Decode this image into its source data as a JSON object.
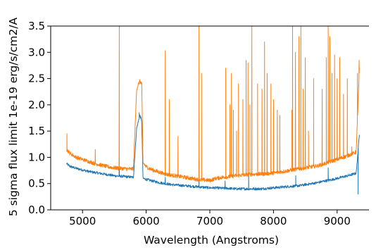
{
  "chart_data": {
    "type": "line",
    "xlabel": "Wavelength (Angstroms)",
    "ylabel": "5 sigma flux limit 1e-19 erg/s/cm2/A",
    "xlim": [
      4500,
      9500
    ],
    "ylim": [
      0.0,
      3.5
    ],
    "xticks": [
      5000,
      6000,
      7000,
      8000,
      9000
    ],
    "yticks": [
      "0.0",
      "0.5",
      "1.0",
      "1.5",
      "2.0",
      "2.5",
      "3.0",
      "3.5"
    ],
    "grid": false,
    "legend": "none",
    "series": [
      {
        "color": "#1f77b4",
        "points": [
          [
            4750,
            0.88
          ],
          [
            4800,
            0.83
          ],
          [
            4900,
            0.79
          ],
          [
            5000,
            0.76
          ],
          [
            5100,
            0.73
          ],
          [
            5200,
            0.71
          ],
          [
            5300,
            0.69
          ],
          [
            5400,
            0.67
          ],
          [
            5500,
            0.65
          ],
          [
            5600,
            0.64
          ],
          [
            5700,
            0.63
          ],
          [
            5800,
            0.62
          ],
          [
            5850,
            1.55
          ],
          [
            5900,
            1.8
          ],
          [
            5930,
            1.7
          ],
          [
            5950,
            0.6
          ],
          [
            6000,
            0.58
          ],
          [
            6100,
            0.55
          ],
          [
            6200,
            0.52
          ],
          [
            6300,
            0.5
          ],
          [
            6400,
            0.48
          ],
          [
            6500,
            0.47
          ],
          [
            6600,
            0.46
          ],
          [
            6700,
            0.45
          ],
          [
            6800,
            0.44
          ],
          [
            6900,
            0.43
          ],
          [
            7000,
            0.42
          ],
          [
            7100,
            0.42
          ],
          [
            7200,
            0.41
          ],
          [
            7300,
            0.41
          ],
          [
            7400,
            0.4
          ],
          [
            7500,
            0.4
          ],
          [
            7600,
            0.4
          ],
          [
            7700,
            0.4
          ],
          [
            7800,
            0.4
          ],
          [
            7900,
            0.41
          ],
          [
            8000,
            0.42
          ],
          [
            8100,
            0.43
          ],
          [
            8200,
            0.44
          ],
          [
            8300,
            0.45
          ],
          [
            8400,
            0.46
          ],
          [
            8500,
            0.48
          ],
          [
            8600,
            0.5
          ],
          [
            8700,
            0.52
          ],
          [
            8800,
            0.55
          ],
          [
            8900,
            0.57
          ],
          [
            9000,
            0.6
          ],
          [
            9100,
            0.63
          ],
          [
            9200,
            0.66
          ],
          [
            9300,
            0.7
          ],
          [
            9350,
            1.45
          ]
        ],
        "spikes": [
          [
            5577,
            1.0
          ],
          [
            5890,
            1.85
          ],
          [
            6300,
            0.62
          ],
          [
            6830,
            0.95
          ],
          [
            7240,
            0.55
          ],
          [
            7610,
            0.7
          ],
          [
            8350,
            0.65
          ],
          [
            8860,
            0.8
          ],
          [
            9330,
            0.3
          ]
        ]
      },
      {
        "color": "#ff7f0e",
        "points": [
          [
            4750,
            1.15
          ],
          [
            4800,
            1.08
          ],
          [
            4900,
            1.0
          ],
          [
            5000,
            0.96
          ],
          [
            5100,
            0.92
          ],
          [
            5200,
            0.88
          ],
          [
            5300,
            0.85
          ],
          [
            5400,
            0.82
          ],
          [
            5500,
            0.8
          ],
          [
            5600,
            0.79
          ],
          [
            5700,
            0.78
          ],
          [
            5800,
            0.78
          ],
          [
            5850,
            2.3
          ],
          [
            5900,
            2.45
          ],
          [
            5930,
            2.4
          ],
          [
            5950,
            0.9
          ],
          [
            6000,
            0.82
          ],
          [
            6100,
            0.76
          ],
          [
            6200,
            0.72
          ],
          [
            6300,
            0.68
          ],
          [
            6400,
            0.66
          ],
          [
            6500,
            0.64
          ],
          [
            6600,
            0.62
          ],
          [
            6700,
            0.6
          ],
          [
            6800,
            0.58
          ],
          [
            6900,
            0.57
          ],
          [
            7000,
            0.56
          ],
          [
            7100,
            0.6
          ],
          [
            7200,
            0.62
          ],
          [
            7300,
            0.63
          ],
          [
            7400,
            0.65
          ],
          [
            7500,
            0.66
          ],
          [
            7600,
            0.67
          ],
          [
            7700,
            0.68
          ],
          [
            7800,
            0.68
          ],
          [
            7900,
            0.69
          ],
          [
            8000,
            0.7
          ],
          [
            8100,
            0.72
          ],
          [
            8200,
            0.74
          ],
          [
            8300,
            0.76
          ],
          [
            8400,
            0.78
          ],
          [
            8500,
            0.8
          ],
          [
            8600,
            0.82
          ],
          [
            8700,
            0.84
          ],
          [
            8800,
            0.88
          ],
          [
            8900,
            0.92
          ],
          [
            9000,
            0.96
          ],
          [
            9100,
            1.0
          ],
          [
            9200,
            1.05
          ],
          [
            9300,
            1.1
          ],
          [
            9350,
            2.7
          ]
        ],
        "spikes": [
          [
            4755,
            1.45
          ],
          [
            5200,
            1.15
          ],
          [
            5577,
            3.5
          ],
          [
            6300,
            3.03
          ],
          [
            6363,
            2.1
          ],
          [
            6500,
            1.4
          ],
          [
            6830,
            3.5
          ],
          [
            6870,
            2.6
          ],
          [
            7250,
            2.7
          ],
          [
            7316,
            2.0
          ],
          [
            7340,
            2.6
          ],
          [
            7370,
            1.9
          ],
          [
            7420,
            1.5
          ],
          [
            7450,
            2.4
          ],
          [
            7520,
            2.1
          ],
          [
            7570,
            2.85
          ],
          [
            7600,
            2.8
          ],
          [
            7630,
            2.0
          ],
          [
            7660,
            3.5
          ],
          [
            7750,
            2.4
          ],
          [
            7820,
            2.3
          ],
          [
            7860,
            3.2
          ],
          [
            7900,
            2.6
          ],
          [
            7960,
            2.4
          ],
          [
            8000,
            2.1
          ],
          [
            8060,
            1.9
          ],
          [
            8100,
            1.8
          ],
          [
            8290,
            1.9
          ],
          [
            8300,
            3.5
          ],
          [
            8345,
            3.0
          ],
          [
            8400,
            3.3
          ],
          [
            8430,
            3.5
          ],
          [
            8465,
            2.3
          ],
          [
            8500,
            2.9
          ],
          [
            8550,
            1.5
          ],
          [
            8630,
            2.5
          ],
          [
            8765,
            2.3
          ],
          [
            8830,
            2.9
          ],
          [
            8860,
            3.5
          ],
          [
            8885,
            3.3
          ],
          [
            8920,
            2.6
          ],
          [
            8960,
            2.95
          ],
          [
            9000,
            2.5
          ],
          [
            9040,
            2.9
          ],
          [
            9100,
            2.2
          ],
          [
            9160,
            2.5
          ],
          [
            9230,
            1.2
          ],
          [
            9320,
            2.6
          ],
          [
            9345,
            2.85
          ]
        ]
      }
    ]
  }
}
